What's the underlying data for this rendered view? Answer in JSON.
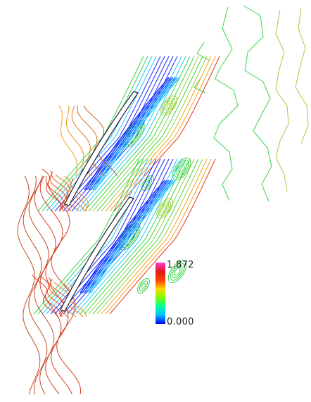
{
  "colorbar": {
    "max_label": "1.872",
    "min_label": "0.000",
    "colors": [
      "#0000ff",
      "#00bfff",
      "#00ffa0",
      "#7cff00",
      "#ffd700",
      "#ff4000",
      "#e0181c",
      "#ff3cd2"
    ]
  },
  "contour_colors": {
    "low": "#1a2cff",
    "cyan": "#22c6ff",
    "green": "#38d44c",
    "yellow_green": "#9ad23a",
    "orange": "#f5a020",
    "red": "#e8321c",
    "brown": "#c44a22"
  }
}
